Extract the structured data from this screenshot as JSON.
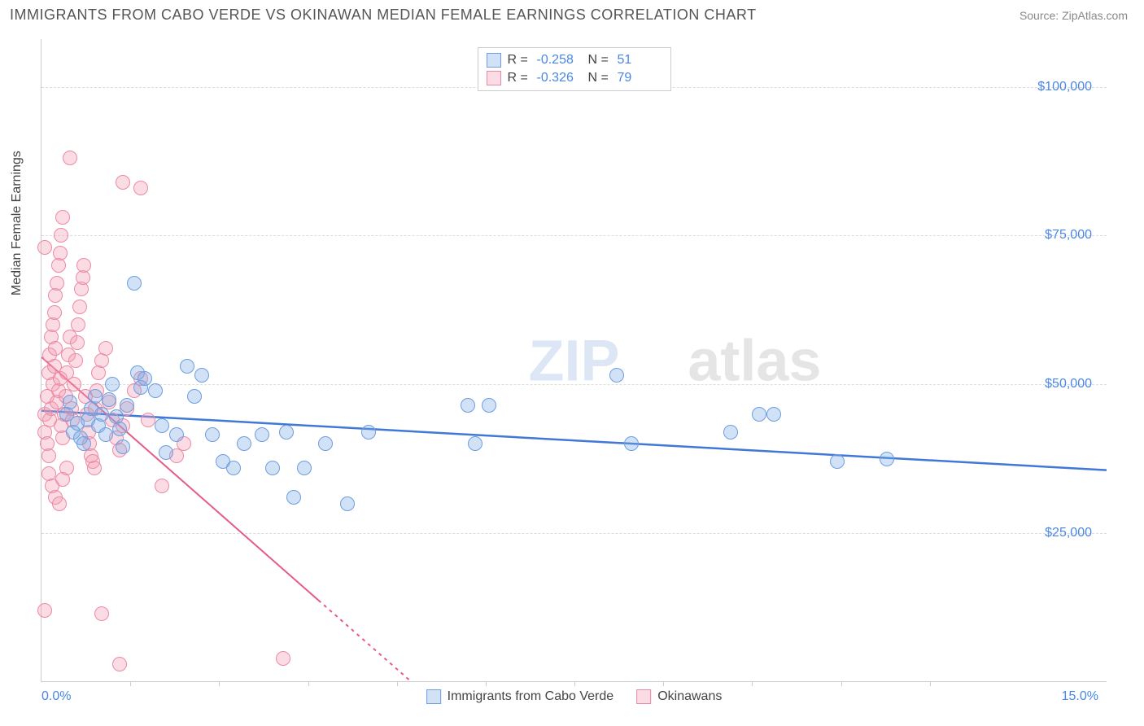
{
  "header": {
    "title": "IMMIGRANTS FROM CABO VERDE VS OKINAWAN MEDIAN FEMALE EARNINGS CORRELATION CHART",
    "source": "Source: ZipAtlas.com"
  },
  "watermark": {
    "text_zip": "ZIP",
    "text_atlas": "atlas",
    "color_zip": "#dce6f5",
    "color_atlas": "#e5e5e5",
    "fontsize": 72
  },
  "chart": {
    "type": "scatter",
    "ylabel": "Median Female Earnings",
    "xlim": [
      0,
      15
    ],
    "ylim": [
      0,
      108000
    ],
    "x_min_label": "0.0%",
    "x_max_label": "15.0%",
    "yticks": [
      {
        "v": 25000,
        "label": "$25,000"
      },
      {
        "v": 50000,
        "label": "$50,000"
      },
      {
        "v": 75000,
        "label": "$75,000"
      },
      {
        "v": 100000,
        "label": "$100,000"
      }
    ],
    "xticks_minor": [
      1.25,
      2.5,
      3.75,
      5.0,
      6.25,
      7.5,
      8.75,
      10.0,
      11.25,
      12.5
    ],
    "grid_color": "#dddddd",
    "background": "#ffffff",
    "point_radius": 9,
    "series": [
      {
        "name": "Immigrants from Cabo Verde",
        "fill": "rgba(124,169,230,0.35)",
        "stroke": "#6f9de0",
        "trend": {
          "x1": 0,
          "y1": 45500,
          "x2": 15,
          "y2": 35500,
          "color": "#3f78d8",
          "width": 2.5,
          "dash": "none"
        },
        "R_label": "R = ",
        "R_value": "-0.258",
        "N_label": "N = ",
        "N_value": "51",
        "points": [
          [
            0.35,
            45000
          ],
          [
            0.4,
            47000
          ],
          [
            0.45,
            42000
          ],
          [
            0.5,
            43500
          ],
          [
            0.55,
            41000
          ],
          [
            0.6,
            40000
          ],
          [
            0.65,
            44000
          ],
          [
            0.7,
            46000
          ],
          [
            0.75,
            48000
          ],
          [
            0.8,
            43000
          ],
          [
            0.85,
            45000
          ],
          [
            0.9,
            41500
          ],
          [
            0.95,
            47500
          ],
          [
            1.0,
            50000
          ],
          [
            1.05,
            44500
          ],
          [
            1.1,
            42500
          ],
          [
            1.15,
            39500
          ],
          [
            1.2,
            46500
          ],
          [
            1.3,
            67000
          ],
          [
            1.35,
            52000
          ],
          [
            1.4,
            49500
          ],
          [
            1.45,
            51000
          ],
          [
            1.6,
            49000
          ],
          [
            1.7,
            43000
          ],
          [
            1.75,
            38500
          ],
          [
            1.9,
            41500
          ],
          [
            2.05,
            53000
          ],
          [
            2.15,
            48000
          ],
          [
            2.25,
            51500
          ],
          [
            2.4,
            41500
          ],
          [
            2.55,
            37000
          ],
          [
            2.7,
            36000
          ],
          [
            2.85,
            40000
          ],
          [
            3.1,
            41500
          ],
          [
            3.25,
            36000
          ],
          [
            3.45,
            42000
          ],
          [
            3.55,
            31000
          ],
          [
            3.7,
            36000
          ],
          [
            4.0,
            40000
          ],
          [
            4.3,
            30000
          ],
          [
            4.6,
            42000
          ],
          [
            6.0,
            46500
          ],
          [
            6.1,
            40000
          ],
          [
            6.3,
            46500
          ],
          [
            8.1,
            51500
          ],
          [
            8.3,
            40000
          ],
          [
            9.7,
            42000
          ],
          [
            10.1,
            45000
          ],
          [
            10.3,
            45000
          ],
          [
            11.2,
            37000
          ],
          [
            11.9,
            37500
          ]
        ]
      },
      {
        "name": "Okinawans",
        "fill": "rgba(244,154,178,0.35)",
        "stroke": "#ec8aa5",
        "trend": {
          "x1": 0,
          "y1": 54500,
          "x2": 5.2,
          "y2": 0,
          "color": "#e65a87",
          "width": 2,
          "dash": "4 5",
          "solid_until_x": 3.9
        },
        "R_label": "R = ",
        "R_value": "-0.326",
        "N_label": "N = ",
        "N_value": "79",
        "points": [
          [
            0.05,
            45000
          ],
          [
            0.08,
            48000
          ],
          [
            0.1,
            52000
          ],
          [
            0.12,
            55000
          ],
          [
            0.14,
            58000
          ],
          [
            0.16,
            60000
          ],
          [
            0.18,
            62000
          ],
          [
            0.2,
            65000
          ],
          [
            0.22,
            67000
          ],
          [
            0.24,
            70000
          ],
          [
            0.26,
            72000
          ],
          [
            0.28,
            75000
          ],
          [
            0.3,
            78000
          ],
          [
            0.05,
            42000
          ],
          [
            0.08,
            40000
          ],
          [
            0.1,
            38000
          ],
          [
            0.12,
            44000
          ],
          [
            0.14,
            46000
          ],
          [
            0.16,
            50000
          ],
          [
            0.18,
            53000
          ],
          [
            0.2,
            56000
          ],
          [
            0.22,
            47000
          ],
          [
            0.24,
            49000
          ],
          [
            0.26,
            51000
          ],
          [
            0.28,
            43000
          ],
          [
            0.3,
            41000
          ],
          [
            0.32,
            45000
          ],
          [
            0.34,
            48000
          ],
          [
            0.36,
            52000
          ],
          [
            0.38,
            55000
          ],
          [
            0.4,
            58000
          ],
          [
            0.42,
            46000
          ],
          [
            0.44,
            44000
          ],
          [
            0.46,
            50000
          ],
          [
            0.48,
            54000
          ],
          [
            0.5,
            57000
          ],
          [
            0.52,
            60000
          ],
          [
            0.54,
            63000
          ],
          [
            0.56,
            66000
          ],
          [
            0.58,
            68000
          ],
          [
            0.6,
            70000
          ],
          [
            0.62,
            48000
          ],
          [
            0.64,
            45000
          ],
          [
            0.66,
            42000
          ],
          [
            0.68,
            40000
          ],
          [
            0.7,
            38000
          ],
          [
            0.72,
            37000
          ],
          [
            0.74,
            36000
          ],
          [
            0.76,
            46000
          ],
          [
            0.78,
            49000
          ],
          [
            0.8,
            52000
          ],
          [
            0.85,
            54000
          ],
          [
            0.9,
            56000
          ],
          [
            0.95,
            47000
          ],
          [
            1.0,
            44000
          ],
          [
            1.05,
            41000
          ],
          [
            1.1,
            39000
          ],
          [
            1.15,
            43000
          ],
          [
            1.2,
            46000
          ],
          [
            1.3,
            49000
          ],
          [
            1.4,
            51000
          ],
          [
            1.5,
            44000
          ],
          [
            1.15,
            84000
          ],
          [
            1.4,
            83000
          ],
          [
            0.4,
            88000
          ],
          [
            0.05,
            12000
          ],
          [
            0.85,
            11500
          ],
          [
            1.7,
            33000
          ],
          [
            1.9,
            38000
          ],
          [
            2.0,
            40000
          ],
          [
            0.1,
            35000
          ],
          [
            0.15,
            33000
          ],
          [
            0.2,
            31000
          ],
          [
            0.25,
            30000
          ],
          [
            0.3,
            34000
          ],
          [
            0.35,
            36000
          ],
          [
            1.1,
            3000
          ],
          [
            3.4,
            4000
          ],
          [
            0.05,
            73000
          ]
        ]
      }
    ]
  }
}
